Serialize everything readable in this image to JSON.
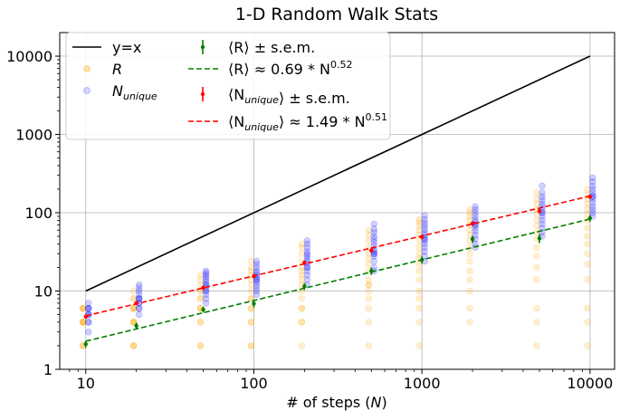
{
  "chart_data": {
    "type": "scatter",
    "title": "1-D Random Walk Stats",
    "xlabel": "# of steps (N)",
    "ylabel": "",
    "xscale": "log",
    "yscale": "log",
    "xlim": [
      7,
      14000
    ],
    "ylim": [
      1,
      20000
    ],
    "grid": true,
    "legend_position": "top-left",
    "x_ticks": [
      {
        "value": 10,
        "label": "10"
      },
      {
        "value": 100,
        "label": "100"
      },
      {
        "value": 1000,
        "label": "1000"
      },
      {
        "value": 10000,
        "label": "10000"
      }
    ],
    "y_ticks": [
      {
        "value": 1,
        "label": "1"
      },
      {
        "value": 10,
        "label": "10"
      },
      {
        "value": 100,
        "label": "100"
      },
      {
        "value": 1000,
        "label": "1000"
      },
      {
        "value": 10000,
        "label": "10000"
      }
    ],
    "steps": [
      10,
      20,
      50,
      100,
      200,
      500,
      1000,
      2000,
      5000,
      10000
    ],
    "series": [
      {
        "name": "y=x",
        "kind": "line",
        "color": "#000000",
        "x": [
          10,
          10000
        ],
        "y": [
          10,
          10000
        ]
      },
      {
        "name": "R",
        "kind": "scatter",
        "color": "#ffa500",
        "samples": [
          [
            2,
            4,
            6,
            6,
            4,
            2,
            4,
            6,
            2,
            4,
            6,
            4
          ],
          [
            2,
            4,
            4,
            6,
            8,
            10,
            6,
            4,
            2,
            8,
            6,
            4,
            2,
            6
          ],
          [
            2,
            4,
            6,
            8,
            10,
            12,
            14,
            16,
            6,
            4,
            2,
            8,
            10,
            6
          ],
          [
            2,
            4,
            6,
            8,
            10,
            12,
            14,
            16,
            18,
            20,
            24,
            6,
            4,
            2,
            8
          ],
          [
            2,
            4,
            6,
            8,
            10,
            12,
            14,
            16,
            18,
            20,
            24,
            30,
            36,
            40,
            6,
            4
          ],
          [
            2,
            4,
            6,
            8,
            10,
            12,
            14,
            18,
            22,
            26,
            30,
            36,
            44,
            52,
            60,
            12
          ],
          [
            2,
            4,
            6,
            8,
            10,
            14,
            18,
            22,
            26,
            30,
            36,
            44,
            52,
            60,
            68,
            76,
            82
          ],
          [
            4,
            6,
            10,
            14,
            18,
            24,
            30,
            36,
            44,
            52,
            60,
            70,
            80,
            90,
            100,
            110
          ],
          [
            2,
            4,
            6,
            14,
            20,
            28,
            36,
            46,
            56,
            68,
            80,
            96,
            110,
            130,
            150,
            180
          ],
          [
            2,
            4,
            6,
            14,
            22,
            30,
            40,
            50,
            64,
            80,
            96,
            112,
            130,
            150,
            170,
            200
          ]
        ]
      },
      {
        "name": "N_unique",
        "kind": "scatter",
        "color": "#0000ff",
        "samples": [
          [
            3,
            4,
            5,
            5,
            6,
            6,
            7,
            5,
            4,
            6
          ],
          [
            5,
            6,
            7,
            8,
            8,
            9,
            10,
            11,
            12,
            6,
            7,
            8
          ],
          [
            7,
            8,
            9,
            10,
            11,
            12,
            13,
            14,
            15,
            16,
            17,
            18,
            12,
            10
          ],
          [
            9,
            10,
            11,
            12,
            13,
            14,
            15,
            16,
            17,
            18,
            20,
            22,
            24,
            14
          ],
          [
            12,
            14,
            16,
            18,
            20,
            22,
            24,
            26,
            28,
            30,
            32,
            36,
            40,
            44,
            20
          ],
          [
            18,
            20,
            24,
            28,
            30,
            32,
            34,
            38,
            42,
            46,
            50,
            56,
            62,
            72,
            30
          ],
          [
            24,
            28,
            32,
            36,
            40,
            44,
            48,
            52,
            56,
            62,
            68,
            74,
            82,
            92,
            46
          ],
          [
            36,
            40,
            46,
            52,
            58,
            64,
            70,
            76,
            82,
            90,
            100,
            110,
            120,
            70
          ],
          [
            50,
            56,
            64,
            72,
            80,
            90,
            100,
            110,
            120,
            130,
            145,
            160,
            180,
            220,
            100
          ],
          [
            90,
            100,
            110,
            120,
            135,
            150,
            165,
            180,
            200,
            220,
            250,
            280,
            160
          ]
        ]
      },
      {
        "name": "⟨R⟩ ± s.e.m.",
        "kind": "errorbar",
        "color": "#008000",
        "x": [
          10,
          20,
          50,
          100,
          200,
          500,
          1000,
          2000,
          5000,
          10000
        ],
        "y": [
          2.1,
          3.6,
          5.8,
          6.9,
          11.5,
          18,
          25,
          46,
          47,
          85
        ],
        "err": [
          0.2,
          0.35,
          0.5,
          0.7,
          1.2,
          2,
          2.6,
          5,
          6,
          8
        ]
      },
      {
        "name": "⟨R⟩ ≈ 0.69 * N^0.52",
        "kind": "fit",
        "color": "#008000",
        "coef": 0.69,
        "exponent": 0.52
      },
      {
        "name": "⟨N_unique⟩ ± s.e.m.",
        "kind": "errorbar",
        "color": "#ff0000",
        "x": [
          10,
          20,
          50,
          100,
          200,
          500,
          1000,
          2000,
          5000,
          10000
        ],
        "y": [
          4.7,
          7,
          11,
          15.5,
          23,
          33,
          49,
          73,
          105,
          160
        ],
        "err": [
          0.3,
          0.45,
          0.7,
          1,
          1.5,
          2.2,
          3.2,
          4.8,
          7,
          10
        ]
      },
      {
        "name": "⟨N_unique⟩ ≈ 1.49 * N^0.51",
        "kind": "fit",
        "color": "#ff0000",
        "coef": 1.49,
        "exponent": 0.51
      }
    ],
    "legend": [
      {
        "key": "y=x",
        "base": "y=x",
        "sub": "",
        "sup": "",
        "tail": ""
      },
      {
        "key": "R",
        "base": "R",
        "sub": "",
        "sup": "",
        "tail": ""
      },
      {
        "key": "N_unique",
        "base": "N",
        "sub": "unique",
        "sup": "",
        "tail": ""
      },
      {
        "key": "⟨R⟩ ± s.e.m.",
        "base": "⟨R⟩ ± s.e.m.",
        "sub": "",
        "sup": "",
        "tail": ""
      },
      {
        "key": "⟨R⟩ ≈ 0.69 * N^0.52",
        "base": "⟨R⟩ ≈ 0.69 * N",
        "sub": "",
        "sup": "0.52",
        "tail": ""
      },
      {
        "key": "⟨N_unique⟩ ± s.e.m.",
        "base": "⟨N",
        "sub": "unique",
        "sup": "",
        "tail": "⟩ ± s.e.m."
      },
      {
        "key": "⟨N_unique⟩ ≈ 1.49 * N^0.51",
        "base": "⟨N",
        "sub": "unique",
        "sup": "0.51",
        "tail": "⟩ ≈ 1.49 * N"
      }
    ]
  }
}
